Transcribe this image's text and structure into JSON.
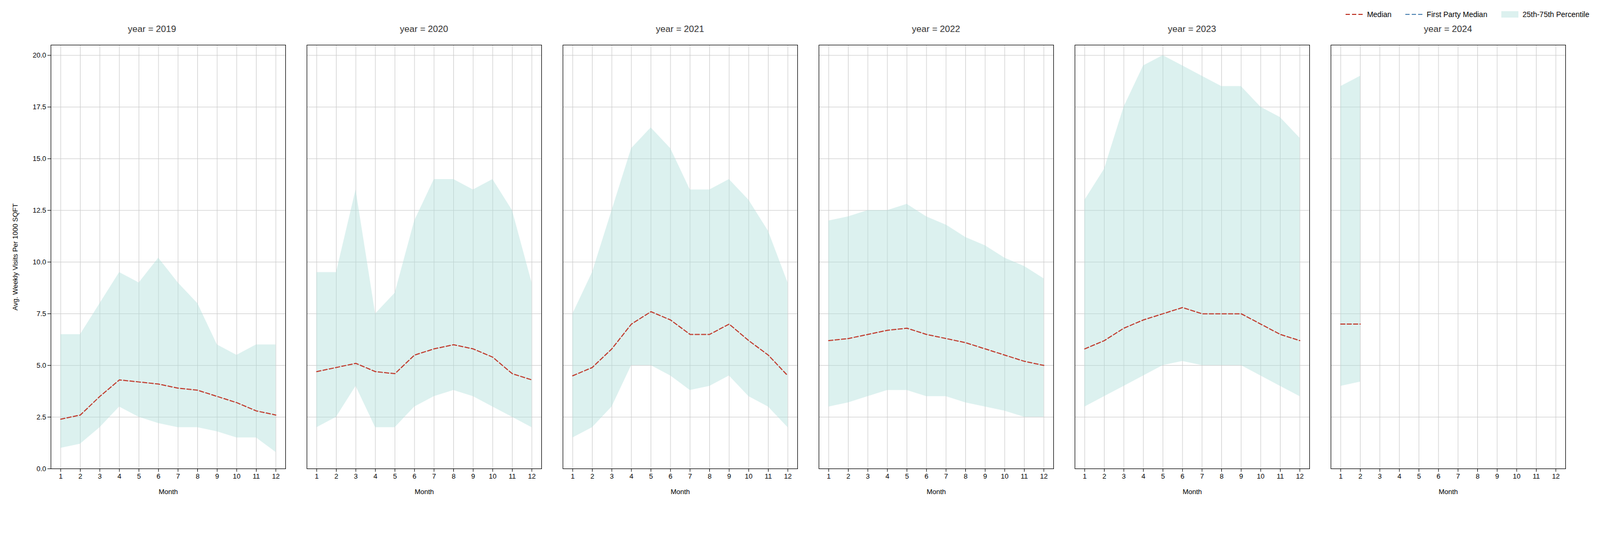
{
  "chart_data": [
    {
      "type": "line",
      "title": "year = 2019",
      "xlabel": "Month",
      "ylabel": "Avg. Weekly Visits Per 1000 SQFT",
      "x": [
        1,
        2,
        3,
        4,
        5,
        6,
        7,
        8,
        9,
        10,
        11,
        12
      ],
      "xlim": [
        0.5,
        12.5
      ],
      "xticks": [
        1,
        2,
        3,
        4,
        5,
        6,
        7,
        8,
        9,
        10,
        11,
        12
      ],
      "ylim": [
        0,
        20.5
      ],
      "yticks": [
        0.0,
        2.5,
        5.0,
        7.5,
        10.0,
        12.5,
        15.0,
        17.5,
        20.0
      ],
      "grid": true,
      "series": [
        {
          "name": "Median",
          "color": "#c0392b",
          "line_style": "dashed",
          "values": [
            2.4,
            2.6,
            3.5,
            4.3,
            4.2,
            4.1,
            3.9,
            3.8,
            3.5,
            3.2,
            2.8,
            2.6
          ]
        },
        {
          "name": "25th-75th Percentile",
          "type": "area",
          "color": "#b2dfdb",
          "low": [
            1.0,
            1.2,
            2.0,
            3.0,
            2.5,
            2.2,
            2.0,
            2.0,
            1.8,
            1.5,
            1.5,
            0.8
          ],
          "high": [
            6.5,
            6.5,
            8.0,
            9.5,
            9.0,
            10.2,
            9.0,
            8.0,
            6.0,
            5.5,
            6.0,
            6.0
          ]
        }
      ]
    },
    {
      "type": "line",
      "title": "year = 2020",
      "xlabel": "Month",
      "tick_labels": "x",
      "x": [
        1,
        2,
        3,
        4,
        5,
        6,
        7,
        8,
        9,
        10,
        11,
        12
      ],
      "xlim": [
        0.5,
        12.5
      ],
      "xticks": [
        1,
        2,
        3,
        4,
        5,
        6,
        7,
        8,
        9,
        10,
        11,
        12
      ],
      "ylim": [
        0,
        20.5
      ],
      "yticks": [
        0.0,
        2.5,
        5.0,
        7.5,
        10.0,
        12.5,
        15.0,
        17.5,
        20.0
      ],
      "grid": true,
      "series": [
        {
          "name": "Median",
          "color": "#c0392b",
          "line_style": "dashed",
          "values": [
            4.7,
            4.9,
            5.1,
            4.7,
            4.6,
            5.5,
            5.8,
            6.0,
            5.8,
            5.4,
            4.6,
            4.3
          ]
        },
        {
          "name": "25th-75th Percentile",
          "type": "area",
          "color": "#b2dfdb",
          "low": [
            2.0,
            2.5,
            4.0,
            2.0,
            2.0,
            3.0,
            3.5,
            3.8,
            3.5,
            3.0,
            2.5,
            2.0
          ],
          "high": [
            9.5,
            9.5,
            13.5,
            7.5,
            8.5,
            12.0,
            14.0,
            14.0,
            13.5,
            14.0,
            12.5,
            9.0
          ]
        }
      ]
    },
    {
      "type": "line",
      "title": "year = 2021",
      "xlabel": "Month",
      "tick_labels": "x",
      "x": [
        1,
        2,
        3,
        4,
        5,
        6,
        7,
        8,
        9,
        10,
        11,
        12
      ],
      "xlim": [
        0.5,
        12.5
      ],
      "xticks": [
        1,
        2,
        3,
        4,
        5,
        6,
        7,
        8,
        9,
        10,
        11,
        12
      ],
      "ylim": [
        0,
        20.5
      ],
      "yticks": [
        0.0,
        2.5,
        5.0,
        7.5,
        10.0,
        12.5,
        15.0,
        17.5,
        20.0
      ],
      "grid": true,
      "series": [
        {
          "name": "Median",
          "color": "#c0392b",
          "line_style": "dashed",
          "values": [
            4.5,
            4.9,
            5.8,
            7.0,
            7.6,
            7.2,
            6.5,
            6.5,
            7.0,
            6.2,
            5.5,
            4.5
          ]
        },
        {
          "name": "25th-75th Percentile",
          "type": "area",
          "color": "#b2dfdb",
          "low": [
            1.5,
            2.0,
            3.0,
            5.0,
            5.0,
            4.5,
            3.8,
            4.0,
            4.5,
            3.5,
            3.0,
            2.0
          ],
          "high": [
            7.5,
            9.5,
            12.5,
            15.5,
            16.5,
            15.5,
            13.5,
            13.5,
            14.0,
            13.0,
            11.5,
            9.0
          ]
        }
      ]
    },
    {
      "type": "line",
      "title": "year = 2022",
      "xlabel": "Month",
      "tick_labels": "x",
      "x": [
        1,
        2,
        3,
        4,
        5,
        6,
        7,
        8,
        9,
        10,
        11,
        12
      ],
      "xlim": [
        0.5,
        12.5
      ],
      "xticks": [
        1,
        2,
        3,
        4,
        5,
        6,
        7,
        8,
        9,
        10,
        11,
        12
      ],
      "ylim": [
        0,
        20.5
      ],
      "yticks": [
        0.0,
        2.5,
        5.0,
        7.5,
        10.0,
        12.5,
        15.0,
        17.5,
        20.0
      ],
      "grid": true,
      "series": [
        {
          "name": "Median",
          "color": "#c0392b",
          "line_style": "dashed",
          "values": [
            6.2,
            6.3,
            6.5,
            6.7,
            6.8,
            6.5,
            6.3,
            6.1,
            5.8,
            5.5,
            5.2,
            5.0
          ]
        },
        {
          "name": "25th-75th Percentile",
          "type": "area",
          "color": "#b2dfdb",
          "low": [
            3.0,
            3.2,
            3.5,
            3.8,
            3.8,
            3.5,
            3.5,
            3.2,
            3.0,
            2.8,
            2.5,
            2.5
          ],
          "high": [
            12.0,
            12.2,
            12.5,
            12.5,
            12.8,
            12.2,
            11.8,
            11.2,
            10.8,
            10.2,
            9.8,
            9.2
          ]
        }
      ]
    },
    {
      "type": "line",
      "title": "year = 2023",
      "xlabel": "Month",
      "tick_labels": "x",
      "x": [
        1,
        2,
        3,
        4,
        5,
        6,
        7,
        8,
        9,
        10,
        11,
        12
      ],
      "xlim": [
        0.5,
        12.5
      ],
      "xticks": [
        1,
        2,
        3,
        4,
        5,
        6,
        7,
        8,
        9,
        10,
        11,
        12
      ],
      "ylim": [
        0,
        20.5
      ],
      "yticks": [
        0.0,
        2.5,
        5.0,
        7.5,
        10.0,
        12.5,
        15.0,
        17.5,
        20.0
      ],
      "grid": true,
      "series": [
        {
          "name": "Median",
          "color": "#c0392b",
          "line_style": "dashed",
          "values": [
            5.8,
            6.2,
            6.8,
            7.2,
            7.5,
            7.8,
            7.5,
            7.5,
            7.5,
            7.0,
            6.5,
            6.2
          ]
        },
        {
          "name": "25th-75th Percentile",
          "type": "area",
          "color": "#b2dfdb",
          "low": [
            3.0,
            3.5,
            4.0,
            4.5,
            5.0,
            5.2,
            5.0,
            5.0,
            5.0,
            4.5,
            4.0,
            3.5
          ],
          "high": [
            13.0,
            14.5,
            17.5,
            19.5,
            20.0,
            19.5,
            19.0,
            18.5,
            18.5,
            17.5,
            17.0,
            16.0
          ]
        }
      ]
    },
    {
      "type": "line",
      "title": "year = 2024",
      "xlabel": "Month",
      "tick_labels": "x",
      "legend": "upper right",
      "x": [
        1,
        2,
        3,
        4,
        5,
        6,
        7,
        8,
        9,
        10,
        11,
        12
      ],
      "xlim": [
        0.5,
        12.5
      ],
      "xticks": [
        1,
        2,
        3,
        4,
        5,
        6,
        7,
        8,
        9,
        10,
        11,
        12
      ],
      "ylim": [
        0,
        20.5
      ],
      "yticks": [
        0.0,
        2.5,
        5.0,
        7.5,
        10.0,
        12.5,
        15.0,
        17.5,
        20.0
      ],
      "grid": true,
      "series": [
        {
          "name": "Median",
          "color": "#c0392b",
          "line_style": "dashed",
          "values": [
            7.0,
            7.0,
            null,
            null,
            null,
            null,
            null,
            null,
            null,
            null,
            null,
            null
          ]
        },
        {
          "name": "First Party Median",
          "color": "#5b8db8",
          "line_style": "dashed",
          "values": [
            null,
            null,
            null,
            null,
            null,
            null,
            null,
            null,
            null,
            null,
            null,
            null
          ]
        },
        {
          "name": "25th-75th Percentile",
          "type": "area",
          "color": "#b2dfdb",
          "low": [
            4.0,
            4.2,
            null,
            null,
            null,
            null,
            null,
            null,
            null,
            null,
            null,
            null
          ],
          "high": [
            18.5,
            19.0,
            null,
            null,
            null,
            null,
            null,
            null,
            null,
            null,
            null,
            null
          ]
        }
      ]
    }
  ]
}
